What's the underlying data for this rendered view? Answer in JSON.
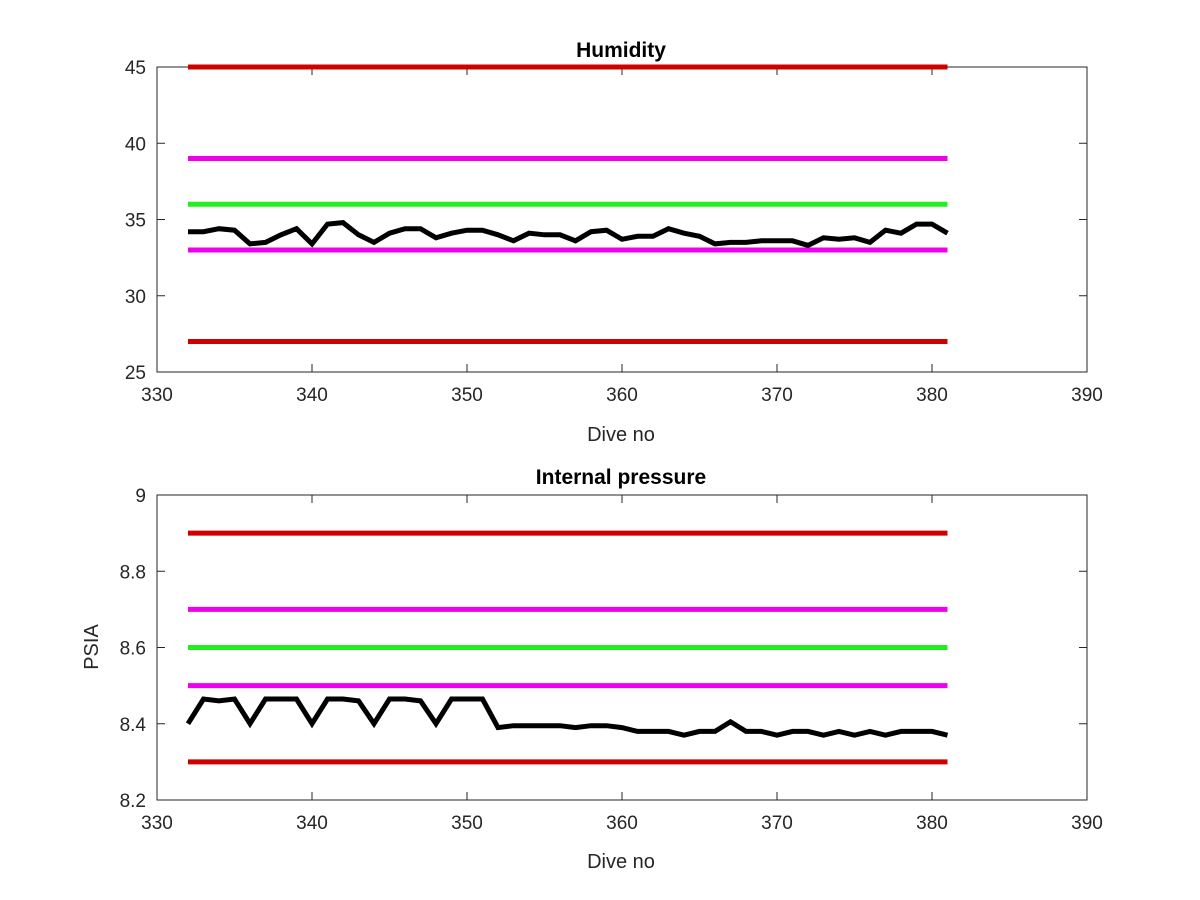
{
  "chart_data": [
    {
      "type": "line",
      "title": "Humidity",
      "xlabel": "Dive no",
      "ylabel": "",
      "xlim": [
        330,
        390
      ],
      "ylim": [
        25,
        45
      ],
      "xticks": [
        330,
        340,
        350,
        360,
        370,
        380,
        390
      ],
      "yticks": [
        25,
        30,
        35,
        40,
        45
      ],
      "grid": false,
      "legend": null,
      "series": [
        {
          "color": "#d00000",
          "x": [
            332,
            381
          ],
          "values": [
            45,
            45
          ]
        },
        {
          "color": "#ee00ee",
          "x": [
            332,
            381
          ],
          "values": [
            39,
            39
          ]
        },
        {
          "color": "#22ee22",
          "x": [
            332,
            381
          ],
          "values": [
            36,
            36
          ]
        },
        {
          "color": "#ee00ee",
          "x": [
            332,
            381
          ],
          "values": [
            33,
            33
          ]
        },
        {
          "color": "#d00000",
          "x": [
            332,
            381
          ],
          "values": [
            27,
            27
          ]
        },
        {
          "color": "#000000",
          "x": [
            332,
            333,
            334,
            335,
            336,
            337,
            338,
            339,
            340,
            341,
            342,
            343,
            344,
            345,
            346,
            347,
            348,
            349,
            350,
            351,
            352,
            353,
            354,
            355,
            356,
            357,
            358,
            359,
            360,
            361,
            362,
            363,
            364,
            365,
            366,
            367,
            368,
            369,
            370,
            371,
            372,
            373,
            374,
            375,
            376,
            377,
            378,
            379,
            380,
            381
          ],
          "values": [
            34.2,
            34.2,
            34.4,
            34.3,
            33.4,
            33.5,
            34.0,
            34.4,
            33.4,
            34.7,
            34.8,
            34.0,
            33.5,
            34.1,
            34.4,
            34.4,
            33.8,
            34.1,
            34.3,
            34.3,
            34.0,
            33.6,
            34.1,
            34.0,
            34.0,
            33.6,
            34.2,
            34.3,
            33.7,
            33.9,
            33.9,
            34.4,
            34.1,
            33.9,
            33.4,
            33.5,
            33.5,
            33.6,
            33.6,
            33.6,
            33.3,
            33.8,
            33.7,
            33.8,
            33.5,
            34.3,
            34.1,
            34.7,
            34.7,
            34.1
          ]
        }
      ]
    },
    {
      "type": "line",
      "title": "Internal pressure",
      "xlabel": "Dive no",
      "ylabel": "PSIA",
      "xlim": [
        330,
        390
      ],
      "ylim": [
        8.2,
        9
      ],
      "xticks": [
        330,
        340,
        350,
        360,
        370,
        380,
        390
      ],
      "yticks": [
        8.2,
        8.4,
        8.6,
        8.8,
        9
      ],
      "grid": false,
      "legend": null,
      "series": [
        {
          "color": "#d00000",
          "x": [
            332,
            381
          ],
          "values": [
            8.9,
            8.9
          ]
        },
        {
          "color": "#ee00ee",
          "x": [
            332,
            381
          ],
          "values": [
            8.7,
            8.7
          ]
        },
        {
          "color": "#22ee22",
          "x": [
            332,
            381
          ],
          "values": [
            8.6,
            8.6
          ]
        },
        {
          "color": "#ee00ee",
          "x": [
            332,
            381
          ],
          "values": [
            8.5,
            8.5
          ]
        },
        {
          "color": "#d00000",
          "x": [
            332,
            381
          ],
          "values": [
            8.3,
            8.3
          ]
        },
        {
          "color": "#000000",
          "x": [
            332,
            333,
            334,
            335,
            336,
            337,
            338,
            339,
            340,
            341,
            342,
            343,
            344,
            345,
            346,
            347,
            348,
            349,
            350,
            351,
            352,
            353,
            354,
            355,
            356,
            357,
            358,
            359,
            360,
            361,
            362,
            363,
            364,
            365,
            366,
            367,
            368,
            369,
            370,
            371,
            372,
            373,
            374,
            375,
            376,
            377,
            378,
            379,
            380,
            381
          ],
          "values": [
            8.4,
            8.465,
            8.46,
            8.465,
            8.4,
            8.465,
            8.465,
            8.465,
            8.4,
            8.465,
            8.465,
            8.46,
            8.4,
            8.465,
            8.465,
            8.46,
            8.4,
            8.465,
            8.465,
            8.465,
            8.39,
            8.395,
            8.395,
            8.395,
            8.395,
            8.39,
            8.395,
            8.395,
            8.39,
            8.38,
            8.38,
            8.38,
            8.37,
            8.38,
            8.38,
            8.405,
            8.38,
            8.38,
            8.37,
            8.38,
            8.38,
            8.37,
            8.38,
            8.37,
            8.38,
            8.37,
            8.38,
            8.38,
            8.38,
            8.37
          ]
        }
      ]
    }
  ]
}
